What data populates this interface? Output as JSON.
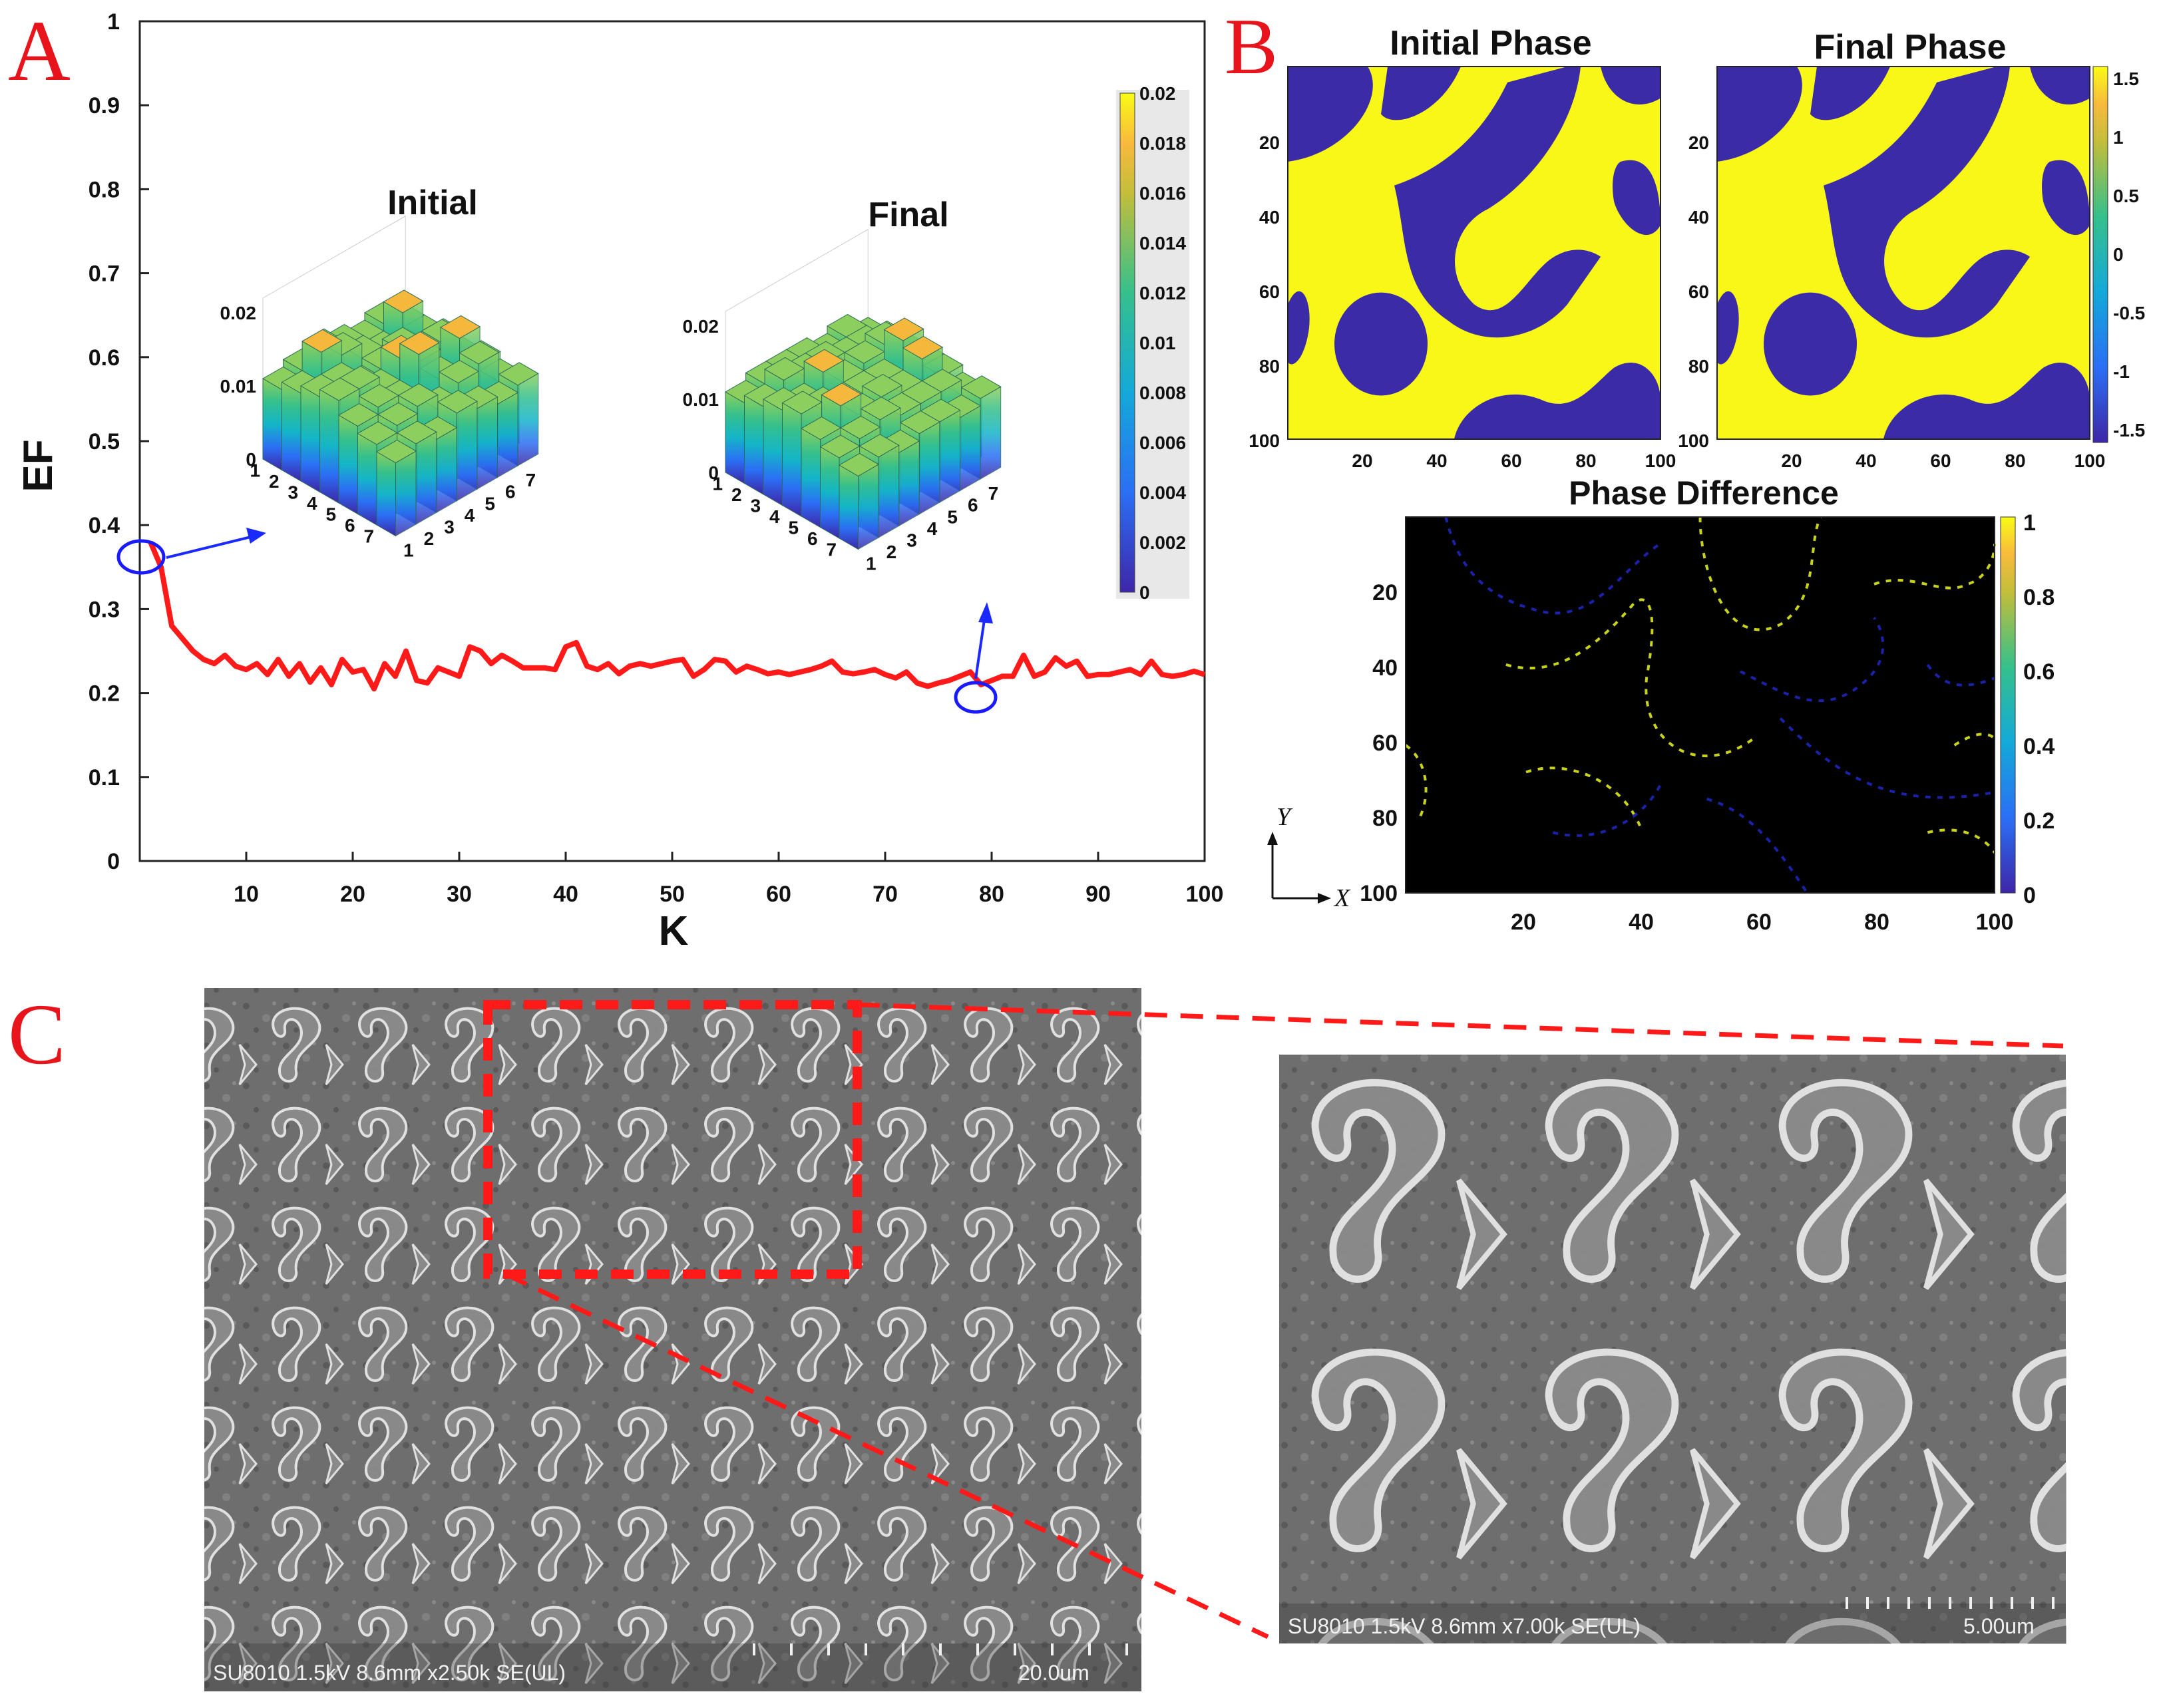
{
  "panels": {
    "a": "A",
    "b": "B",
    "c": "C"
  },
  "colors": {
    "curve": "#ff1a1a",
    "marker": "#1a1aff",
    "yellow": "#f8f718",
    "purple": "#3b2ba6",
    "arrow": "#1a2aff"
  },
  "chart_data": [
    {
      "type": "line",
      "panel": "A",
      "xlabel": "K",
      "ylabel": "EF",
      "xlim": [
        0,
        100
      ],
      "ylim": [
        0,
        1
      ],
      "xticks": [
        "10",
        "20",
        "30",
        "40",
        "50",
        "60",
        "70",
        "80",
        "90",
        "100"
      ],
      "yticks": [
        "0",
        "0.1",
        "0.2",
        "0.3",
        "0.4",
        "0.5",
        "0.6",
        "0.7",
        "0.8",
        "0.9",
        "1"
      ],
      "series": [
        {
          "name": "EF",
          "x_start": 1,
          "x_step": 1,
          "values": [
            0.38,
            0.35,
            0.28,
            0.265,
            0.25,
            0.24,
            0.235,
            0.245,
            0.232,
            0.228,
            0.235,
            0.222,
            0.24,
            0.22,
            0.235,
            0.213,
            0.23,
            0.21,
            0.24,
            0.225,
            0.228,
            0.205,
            0.235,
            0.22,
            0.25,
            0.215,
            0.212,
            0.23,
            0.225,
            0.22,
            0.255,
            0.25,
            0.235,
            0.245,
            0.238,
            0.23,
            0.23,
            0.23,
            0.228,
            0.255,
            0.26,
            0.232,
            0.228,
            0.235,
            0.223,
            0.232,
            0.235,
            0.232,
            0.235,
            0.238,
            0.24,
            0.22,
            0.228,
            0.24,
            0.238,
            0.225,
            0.232,
            0.228,
            0.223,
            0.225,
            0.222,
            0.225,
            0.228,
            0.232,
            0.238,
            0.225,
            0.223,
            0.225,
            0.228,
            0.222,
            0.218,
            0.225,
            0.212,
            0.208,
            0.212,
            0.215,
            0.22,
            0.225,
            0.21,
            0.215,
            0.22,
            0.22,
            0.245,
            0.22,
            0.225,
            0.242,
            0.232,
            0.238,
            0.22,
            0.222,
            0.222,
            0.225,
            0.228,
            0.222,
            0.238,
            0.222,
            0.22,
            0.222,
            0.226,
            0.222
          ]
        }
      ],
      "markers": [
        {
          "label": "initial",
          "k": 1
        },
        {
          "label": "final",
          "k": 79
        }
      ]
    },
    {
      "type": "bar3d",
      "title": "Initial",
      "zlim": [
        0,
        0.02
      ],
      "zticks": [
        "0",
        "0.01",
        "0.02"
      ],
      "xticks": [
        "1",
        "2",
        "3",
        "4",
        "5",
        "6",
        "7"
      ],
      "yticks": [
        "1",
        "2",
        "3",
        "4",
        "5",
        "6",
        "7"
      ],
      "values": [
        [
          0.011,
          0.012,
          0.013,
          0.012,
          0.011,
          0.012,
          0.01
        ],
        [
          0.012,
          0.016,
          0.014,
          0.012,
          0.011,
          0.015,
          0.01
        ],
        [
          0.013,
          0.013,
          0.011,
          0.012,
          0.013,
          0.01,
          0.011
        ],
        [
          0.014,
          0.014,
          0.012,
          0.015,
          0.013,
          0.014,
          0.01
        ],
        [
          0.012,
          0.013,
          0.012,
          0.017,
          0.012,
          0.016,
          0.011
        ],
        [
          0.011,
          0.012,
          0.013,
          0.011,
          0.013,
          0.014,
          0.01
        ],
        [
          0.01,
          0.011,
          0.01,
          0.012,
          0.011,
          0.01,
          0.011
        ]
      ]
    },
    {
      "type": "bar3d",
      "title": "Final",
      "zlim": [
        0,
        0.02
      ],
      "zticks": [
        "0",
        "0.01",
        "0.02"
      ],
      "xticks": [
        "1",
        "2",
        "3",
        "4",
        "5",
        "6",
        "7"
      ],
      "yticks": [
        "1",
        "2",
        "3",
        "4",
        "5",
        "6",
        "7"
      ],
      "values": [
        [
          0.011,
          0.012,
          0.012,
          0.012,
          0.011,
          0.012,
          0.01
        ],
        [
          0.012,
          0.014,
          0.013,
          0.013,
          0.012,
          0.012,
          0.011
        ],
        [
          0.013,
          0.012,
          0.015,
          0.012,
          0.013,
          0.014,
          0.011
        ],
        [
          0.014,
          0.013,
          0.012,
          0.012,
          0.012,
          0.016,
          0.011
        ],
        [
          0.012,
          0.015,
          0.012,
          0.013,
          0.012,
          0.015,
          0.011
        ],
        [
          0.011,
          0.012,
          0.013,
          0.012,
          0.012,
          0.012,
          0.01
        ],
        [
          0.01,
          0.011,
          0.01,
          0.011,
          0.011,
          0.01,
          0.011
        ]
      ]
    },
    {
      "type": "heatmap",
      "title": "Initial Phase",
      "xticks": [
        "20",
        "40",
        "60",
        "80",
        "100"
      ],
      "yticks": [
        "20",
        "40",
        "60",
        "80",
        "100"
      ]
    },
    {
      "type": "heatmap",
      "title": "Final Phase",
      "xticks": [
        "20",
        "40",
        "60",
        "80",
        "100"
      ],
      "yticks": [
        "20",
        "40",
        "60",
        "80",
        "100"
      ],
      "colorbar": [
        "1.5",
        "1",
        "0.5",
        "0",
        "-0.5",
        "-1",
        "-1.5"
      ]
    },
    {
      "type": "heatmap",
      "title": "Phase Difference",
      "xticks": [
        "20",
        "40",
        "60",
        "80",
        "100"
      ],
      "yticks": [
        "20",
        "40",
        "60",
        "80",
        "100"
      ],
      "colorbar": [
        "1",
        "0.8",
        "0.6",
        "0.4",
        "0.2",
        "0"
      ],
      "axes": {
        "y": "Y",
        "x": "X"
      }
    }
  ],
  "colorbar_a": [
    "0.02",
    "0.018",
    "0.016",
    "0.014",
    "0.012",
    "0.01",
    "0.008",
    "0.006",
    "0.004",
    "0.002",
    "0"
  ],
  "sem": {
    "left": {
      "caption": "SU8010 1.5kV 8.6mm x2.50k SE(UL)",
      "scale": "20.0um"
    },
    "right": {
      "caption": "SU8010 1.5kV 8.6mm x7.00k SE(UL)",
      "scale": "5.00um"
    }
  }
}
